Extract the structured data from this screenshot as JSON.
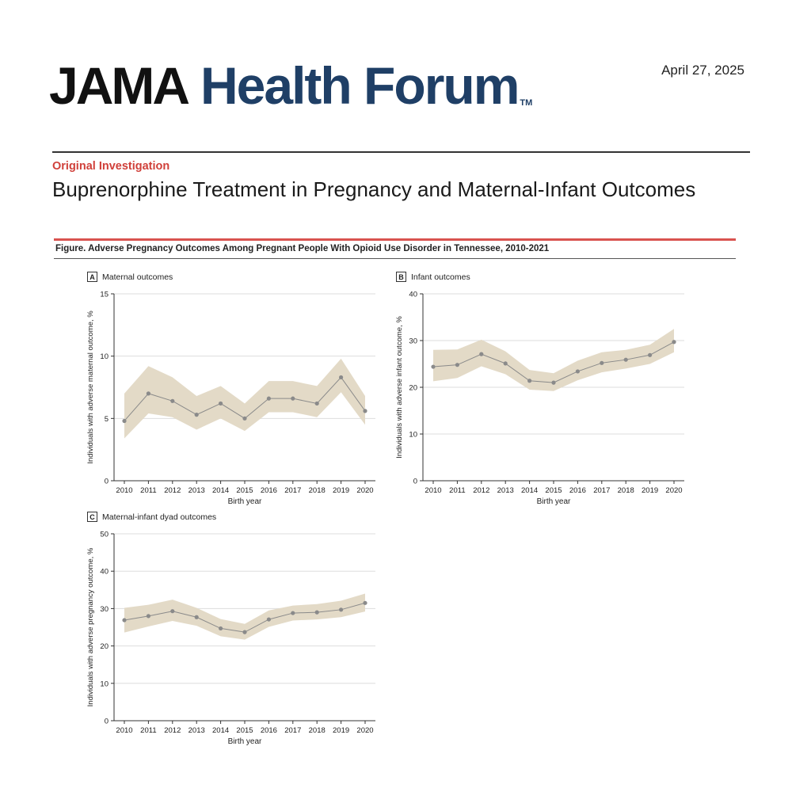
{
  "header": {
    "brand_primary": "JAMA",
    "brand_secondary": "Health Forum",
    "brand_tm": "TM",
    "date": "April  27, 2025"
  },
  "article": {
    "section": "Original Investigation",
    "title": "Buprenorphine Treatment in Pregnancy and Maternal-Infant Outcomes"
  },
  "figure": {
    "caption": "Figure. Adverse Pregnancy Outcomes Among Pregnant People With Opioid Use Disorder in Tennessee, 2010-2021"
  },
  "colors": {
    "band": "#e3dac7",
    "line": "#8a8a8a",
    "point": "#8a8a8a",
    "grid": "#dddddd",
    "axis": "#333333",
    "brand_blue": "#1f3f66",
    "accent_red": "#d0403a"
  },
  "chart_data": [
    {
      "panel": "A",
      "type": "line",
      "title": "Maternal outcomes",
      "xlabel": "Birth year",
      "ylabel": "Individuals with adverse maternal outcome, %",
      "x": [
        "2010",
        "2011",
        "2012",
        "2013",
        "2014",
        "2015",
        "2016",
        "2017",
        "2018",
        "2019",
        "2020"
      ],
      "ylim": [
        0,
        15
      ],
      "yticks": [
        0,
        5,
        10,
        15
      ],
      "grid": true,
      "series": [
        {
          "name": "Maternal outcomes",
          "values": [
            4.8,
            7.0,
            6.4,
            5.3,
            6.2,
            5.0,
            6.6,
            6.6,
            6.2,
            8.3,
            5.6
          ],
          "lower": [
            3.4,
            5.4,
            5.1,
            4.1,
            5.0,
            4.0,
            5.5,
            5.5,
            5.1,
            7.1,
            4.5
          ],
          "upper": [
            7.0,
            9.2,
            8.3,
            6.8,
            7.6,
            6.2,
            8.0,
            8.0,
            7.6,
            9.8,
            6.8
          ]
        }
      ]
    },
    {
      "panel": "B",
      "type": "line",
      "title": "Infant outcomes",
      "xlabel": "Birth year",
      "ylabel": "Individuals with adverse infant outcome, %",
      "x": [
        "2010",
        "2011",
        "2012",
        "2013",
        "2014",
        "2015",
        "2016",
        "2017",
        "2018",
        "2019",
        "2020"
      ],
      "ylim": [
        0,
        40
      ],
      "yticks": [
        0,
        10,
        20,
        30,
        40
      ],
      "grid": true,
      "series": [
        {
          "name": "Infant outcomes",
          "values": [
            24.4,
            24.8,
            27.1,
            25.1,
            21.4,
            21.0,
            23.4,
            25.2,
            25.9,
            26.9,
            29.7
          ],
          "lower": [
            21.3,
            22.0,
            24.5,
            22.8,
            19.5,
            19.2,
            21.5,
            23.2,
            24.0,
            25.0,
            27.5
          ],
          "upper": [
            28.0,
            28.1,
            30.2,
            27.7,
            23.7,
            23.0,
            25.7,
            27.5,
            28.0,
            29.1,
            32.5
          ]
        }
      ]
    },
    {
      "panel": "C",
      "type": "line",
      "title": "Maternal-infant dyad outcomes",
      "xlabel": "Birth year",
      "ylabel": "Individuals with adverse pregnancy outcome, %",
      "x": [
        "2010",
        "2011",
        "2012",
        "2013",
        "2014",
        "2015",
        "2016",
        "2017",
        "2018",
        "2019",
        "2020"
      ],
      "ylim": [
        0,
        50
      ],
      "yticks": [
        0,
        10,
        20,
        30,
        40,
        50
      ],
      "grid": true,
      "series": [
        {
          "name": "Maternal-infant dyad outcomes",
          "values": [
            26.9,
            28.0,
            29.3,
            27.7,
            24.7,
            23.7,
            27.1,
            28.8,
            29.0,
            29.7,
            31.5
          ],
          "lower": [
            23.6,
            25.2,
            26.7,
            25.4,
            22.6,
            21.7,
            25.1,
            26.8,
            27.1,
            27.7,
            29.2
          ],
          "upper": [
            30.2,
            31.0,
            32.4,
            30.2,
            27.2,
            25.9,
            29.5,
            30.8,
            31.2,
            32.1,
            34.0
          ]
        }
      ]
    }
  ]
}
